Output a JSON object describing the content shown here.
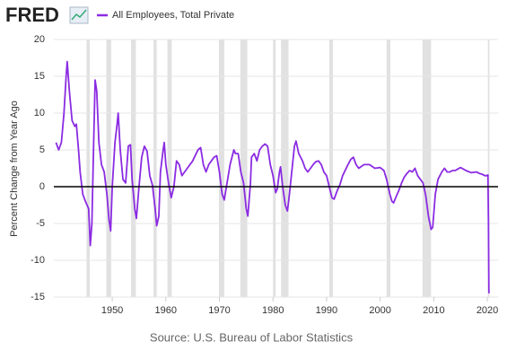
{
  "logo": "FRED",
  "chart_data": {
    "type": "line",
    "y_label": "Percent Change from Year Ago",
    "source": "Source: U.S. Bureau of Labor Statistics",
    "x": [
      1939.5,
      1940,
      1940.5,
      1941,
      1941.4,
      1941.6,
      1942,
      1942.5,
      1943,
      1943.3,
      1943.7,
      1944,
      1944.5,
      1945,
      1945.3,
      1945.6,
      1945.9,
      1946.2,
      1946.5,
      1946.8,
      1947.1,
      1947.5,
      1948,
      1948.5,
      1949,
      1949.4,
      1949.7,
      1950,
      1950.5,
      1950.9,
      1951.1,
      1951.5,
      1952,
      1952.5,
      1953,
      1953.4,
      1953.7,
      1954.2,
      1954.5,
      1955,
      1955.5,
      1956,
      1956.5,
      1957,
      1957.5,
      1958,
      1958.3,
      1958.7,
      1959,
      1959.5,
      1959.7,
      1960,
      1960.5,
      1961,
      1961.5,
      1962,
      1962.5,
      1963,
      1963.5,
      1964,
      1965,
      1966,
      1966.5,
      1967,
      1967.5,
      1968,
      1969,
      1969.5,
      1970,
      1970.5,
      1970.9,
      1971.3,
      1972,
      1972.7,
      1973,
      1973.5,
      1974,
      1974.5,
      1975,
      1975.3,
      1975.8,
      1976,
      1976.5,
      1977,
      1977.5,
      1978,
      1978.5,
      1979,
      1979.5,
      1980,
      1980.5,
      1980.8,
      1981.2,
      1981.4,
      1981.8,
      1982.3,
      1982.7,
      1983,
      1983.5,
      1984,
      1984.3,
      1984.8,
      1985.5,
      1986,
      1986.5,
      1987,
      1987.5,
      1988,
      1988.5,
      1989,
      1989.5,
      1990,
      1990.5,
      1991,
      1991.4,
      1992,
      1992.5,
      1993,
      1994,
      1994.5,
      1995,
      1995.5,
      1996,
      1997,
      1998,
      1999,
      2000,
      2000.7,
      2001.2,
      2001.8,
      2002.2,
      2002.5,
      2003,
      2003.5,
      2004,
      2004.5,
      2005,
      2005.5,
      2006,
      2006.5,
      2007,
      2007.5,
      2008,
      2008.5,
      2009,
      2009.5,
      2009.8,
      2010.3,
      2010.8,
      2011.5,
      2012,
      2012.5,
      2013,
      2013.5,
      2014,
      2014.5,
      2015,
      2015.5,
      2016,
      2017,
      2018,
      2018.5,
      2019,
      2019.5,
      2019.9,
      2020.1,
      2020.2,
      2020.3
    ],
    "series": [
      {
        "name": "All Employees, Total Private",
        "color": "#8b2be2",
        "values": [
          6,
          5,
          6,
          10,
          15,
          17,
          13,
          9,
          8.2,
          8.5,
          5,
          2,
          -1,
          -2,
          -2.5,
          -3,
          -8,
          -5,
          5,
          14.5,
          13,
          6,
          3,
          2,
          -1,
          -4.5,
          -6,
          0,
          6,
          8.5,
          10,
          5,
          1,
          0.5,
          5.5,
          5.7,
          1,
          -3,
          -4.3,
          0,
          4,
          5.5,
          4.8,
          1.5,
          0.2,
          -3,
          -5.3,
          -4,
          2,
          5,
          6,
          3,
          0.5,
          -1.5,
          0,
          3.5,
          3,
          1.5,
          2,
          2.5,
          3.5,
          5,
          5.3,
          3,
          2,
          3,
          4,
          4.2,
          2,
          -1,
          -1.8,
          0,
          3,
          5,
          4.5,
          4.5,
          2,
          0.5,
          -3,
          -4,
          0.5,
          4,
          4.5,
          3.5,
          5,
          5.5,
          5.8,
          5.5,
          3,
          1.5,
          -0.8,
          -0.3,
          2,
          2.7,
          0,
          -2.5,
          -3.3,
          -1.5,
          2,
          5.5,
          6.2,
          4.5,
          3.5,
          2.5,
          2,
          2.5,
          3,
          3.4,
          3.5,
          3,
          2,
          1.5,
          0,
          -1.5,
          -1.7,
          -0.5,
          0.3,
          1.5,
          3,
          3.7,
          4,
          3,
          2.5,
          3,
          3,
          2.5,
          2.6,
          2.2,
          1,
          -1,
          -2,
          -2.2,
          -1.3,
          -0.5,
          0.5,
          1.3,
          1.8,
          2.2,
          2,
          2.5,
          1.5,
          1,
          0.5,
          -1.2,
          -4,
          -5.8,
          -5.5,
          -1,
          1,
          2,
          2.5,
          2,
          2,
          2.2,
          2.2,
          2.4,
          2.6,
          2.4,
          2.2,
          1.9,
          2,
          1.8,
          1.7,
          1.5,
          1.5,
          1.6,
          -4.5,
          -14.5
        ]
      }
    ],
    "recessions": [
      [
        1945.2,
        1945.8
      ],
      [
        1948.9,
        1949.8
      ],
      [
        1953.5,
        1954.4
      ],
      [
        1957.7,
        1958.3
      ],
      [
        1960.3,
        1961.1
      ],
      [
        1969.9,
        1970.9
      ],
      [
        1973.9,
        1975.2
      ],
      [
        1980.0,
        1980.5
      ],
      [
        1981.5,
        1982.9
      ],
      [
        1990.5,
        1991.2
      ],
      [
        2001.2,
        2001.9
      ],
      [
        2007.9,
        2009.5
      ],
      [
        2020.1,
        2020.4
      ]
    ],
    "recession_color": "#e1e1e1",
    "xlim": [
      1939.1,
      2022
    ],
    "xticks": [
      1950,
      1960,
      1970,
      1980,
      1990,
      2000,
      2010,
      2020
    ],
    "ylim": [
      -15,
      20
    ],
    "yticks": [
      -15,
      -10,
      -5,
      0,
      5,
      10,
      15,
      20
    ],
    "grid": true
  }
}
